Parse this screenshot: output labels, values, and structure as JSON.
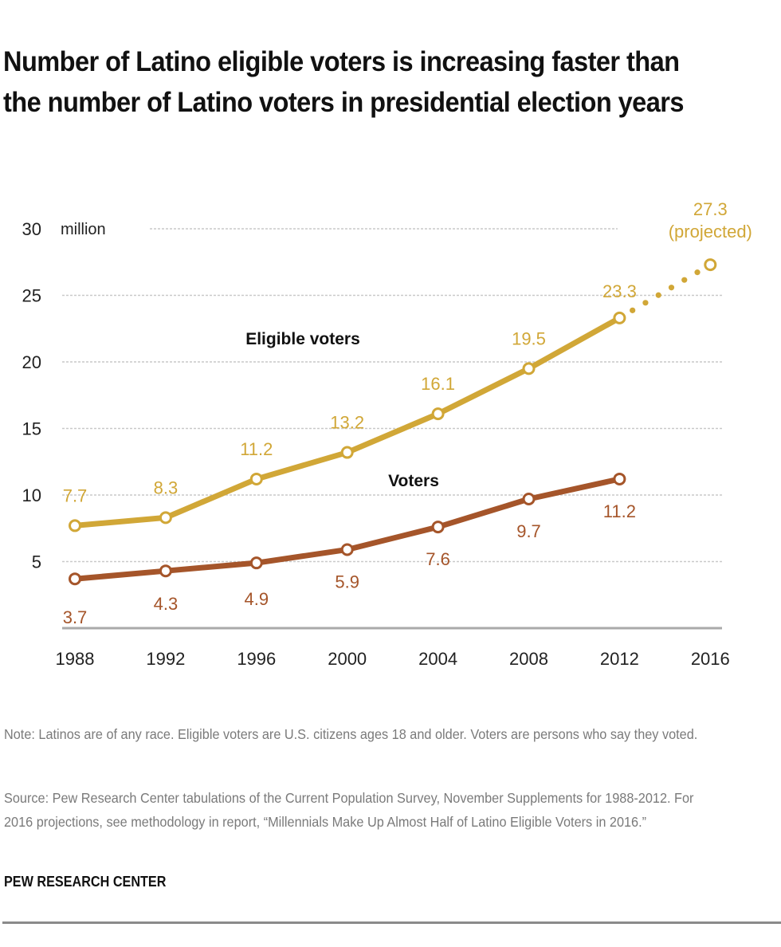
{
  "title": "Number of Latino eligible voters is increasing faster than the number of Latino voters in presidential election years",
  "note": "Note: Latinos are of any race. Eligible voters are U.S. citizens ages 18 and older. Voters are persons who say they voted.",
  "source": "Source: Pew Research Center tabulations of the Current Population Survey, November Supplements for 1988-2012. For 2016 projections, see methodology in report, “Millennials Make Up Almost Half of Latino Eligible Voters in 2016.”",
  "brand": "PEW RESEARCH CENTER",
  "chart_data": {
    "type": "line",
    "title": "Number of Latino eligible voters is increasing faster than the number of Latino voters in presidential election years",
    "xlabel": "",
    "ylabel": "million",
    "unit_label": "million",
    "x": [
      "1988",
      "1992",
      "1996",
      "2000",
      "2004",
      "2008",
      "2012",
      "2016"
    ],
    "yticks": [
      5,
      10,
      15,
      20,
      25,
      30
    ],
    "ylim": [
      0,
      30
    ],
    "grid": true,
    "legend": "inline-labels",
    "series": [
      {
        "name": "Eligible voters",
        "color": "#D1A737",
        "values": [
          7.7,
          8.3,
          11.2,
          13.2,
          16.1,
          19.5,
          23.3,
          27.3
        ],
        "labels": [
          "7.7",
          "8.3",
          "11.2",
          "13.2",
          "16.1",
          "19.5",
          "23.3",
          "27.3"
        ],
        "projected_from_index": 6,
        "projection_annotation": "(projected)"
      },
      {
        "name": "Voters",
        "color": "#A5552A",
        "values": [
          3.7,
          4.3,
          4.9,
          5.9,
          7.6,
          9.7,
          11.2,
          null
        ],
        "labels": [
          "3.7",
          "4.3",
          "4.9",
          "5.9",
          "7.6",
          "9.7",
          "11.2",
          ""
        ]
      }
    ]
  }
}
